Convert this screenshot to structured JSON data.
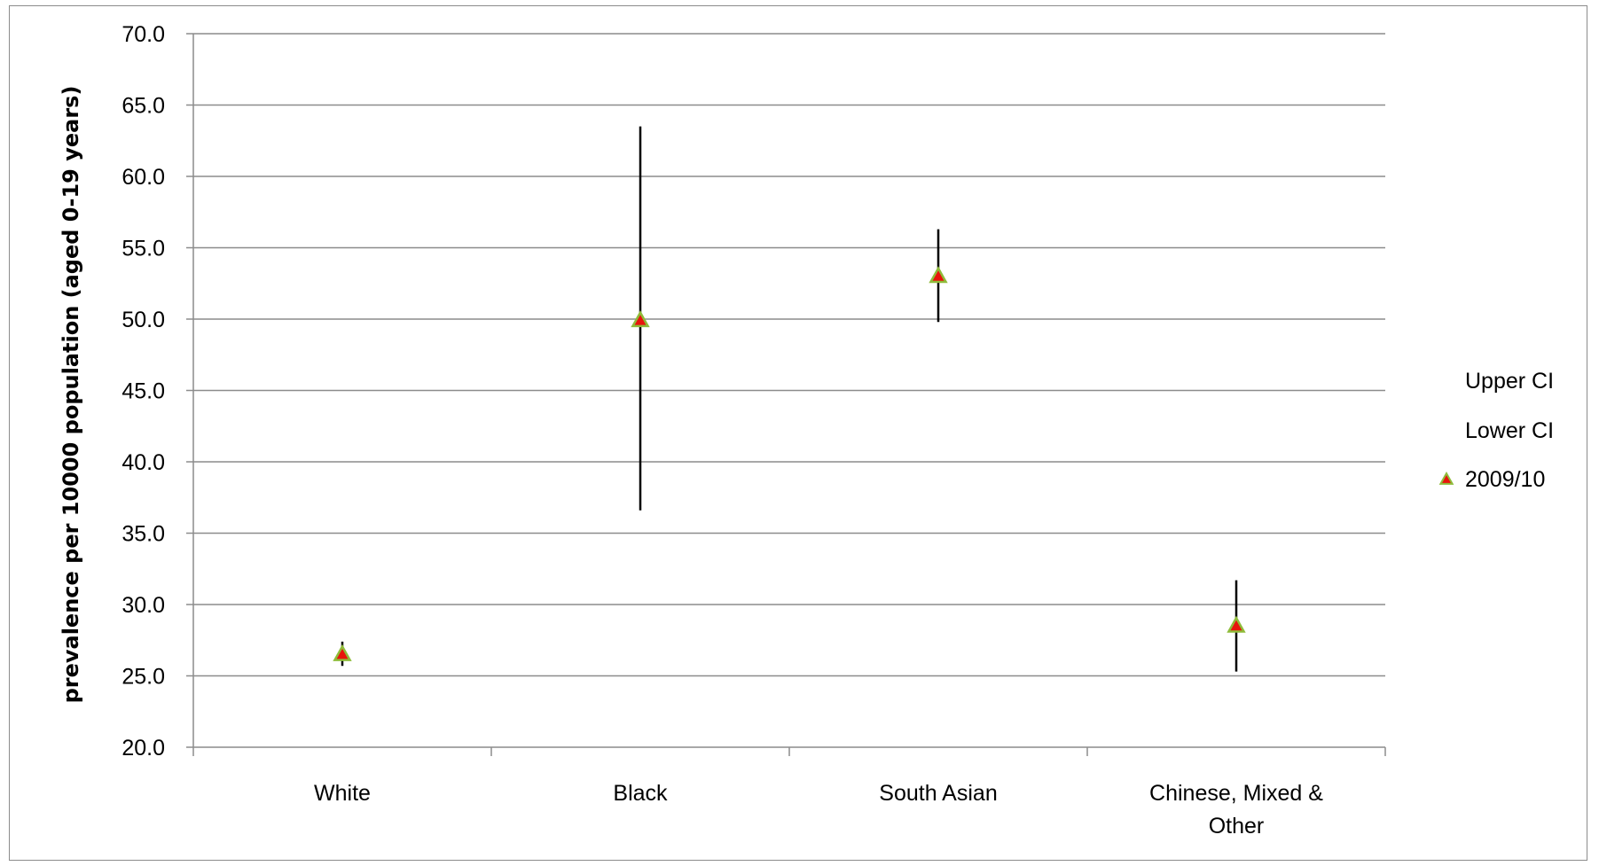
{
  "chart_data": {
    "type": "scatter",
    "title": "",
    "xlabel": "",
    "ylabel": "prevalence per 10000 population (aged 0-19 years)",
    "ylim": [
      20.0,
      70.0
    ],
    "yticks": [
      "20.0",
      "25.0",
      "30.0",
      "35.0",
      "40.0",
      "45.0",
      "50.0",
      "55.0",
      "60.0",
      "65.0",
      "70.0"
    ],
    "categories": [
      [
        "White"
      ],
      [
        "Black"
      ],
      [
        "South Asian"
      ],
      [
        "Chinese, Mixed &",
        "Other"
      ]
    ],
    "series": [
      {
        "name": "Upper CI",
        "values": [
          27.4,
          63.5,
          56.3,
          31.7
        ]
      },
      {
        "name": "Lower CI",
        "values": [
          25.7,
          36.6,
          49.8,
          25.3
        ]
      },
      {
        "name": "2009/10",
        "values": [
          26.5,
          49.9,
          53.0,
          28.5
        ]
      }
    ],
    "grid": true,
    "legend_position": "right",
    "colors": {
      "marker_fill": "#e8140c",
      "marker_edge": "#8fbc3a",
      "error_bar": "#000000",
      "gridline": "#8c8c8c",
      "axis": "#8c8c8c"
    }
  }
}
